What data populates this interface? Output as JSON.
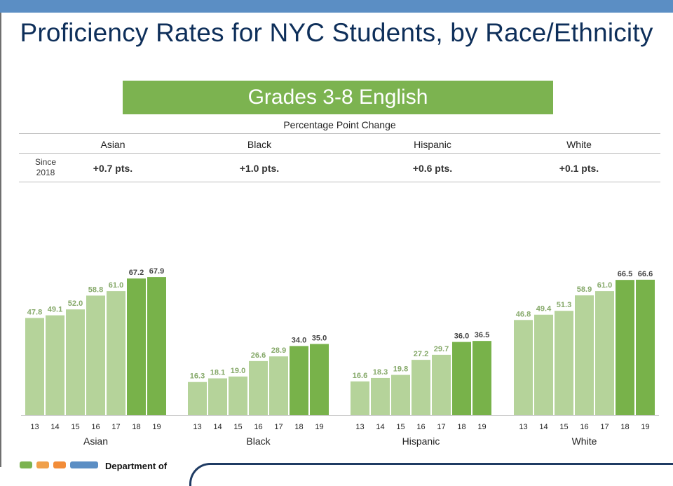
{
  "title": "Proficiency Rates for NYC Students, by Race/Ethnicity",
  "banner": "Grades 3-8 English",
  "change_table": {
    "header": "Percentage Point Change",
    "row_label_line1": "Since",
    "row_label_line2": "2018",
    "columns": [
      "Asian",
      "Black",
      "Hispanic",
      "White"
    ],
    "values": [
      "+0.7 pts.",
      "+1.0 pts.",
      "+0.6 pts.",
      "+0.1 pts."
    ]
  },
  "footer": {
    "org_text": "Department of"
  },
  "colors": {
    "top_bar": "#5b8ec4",
    "title": "#0e2f5a",
    "banner": "#7cb350",
    "bar_light": "#b5d39a",
    "bar_dark": "#78b24a",
    "label_light": "#86a96a",
    "label_dark": "#444444",
    "logo": [
      "#7cb350",
      "#f0a04a",
      "#f28c38",
      "#5b8ec4"
    ]
  },
  "chart_data": {
    "type": "bar",
    "categories": [
      "13",
      "14",
      "15",
      "16",
      "17",
      "18",
      "19"
    ],
    "highlight_categories": [
      "18",
      "19"
    ],
    "ylim": [
      0,
      100
    ],
    "grid": false,
    "groups": [
      {
        "name": "Asian",
        "values": [
          47.8,
          49.1,
          52.0,
          58.8,
          61.0,
          67.2,
          67.9
        ],
        "labels": [
          "47.8",
          "49.1",
          "52.0",
          "58.8",
          "61.0",
          "67.2",
          "67.9"
        ]
      },
      {
        "name": "Black",
        "values": [
          16.3,
          18.1,
          19.0,
          26.6,
          28.9,
          34.0,
          35.0
        ],
        "labels": [
          "16.3",
          "18.1",
          "19.0",
          "26.6",
          "28.9",
          "34.0",
          "35.0"
        ]
      },
      {
        "name": "Hispanic",
        "values": [
          16.6,
          18.3,
          19.8,
          27.2,
          29.7,
          36.0,
          36.5
        ],
        "labels": [
          "16.6",
          "18.3",
          "19.8",
          "27.2",
          "29.7",
          "36.0",
          "36.5"
        ]
      },
      {
        "name": "White",
        "values": [
          46.8,
          49.4,
          51.3,
          58.9,
          61.0,
          66.5,
          66.6
        ],
        "labels": [
          "46.8",
          "49.4",
          "51.3",
          "58.9",
          "61.0",
          "66.5",
          "66.6"
        ]
      }
    ]
  }
}
